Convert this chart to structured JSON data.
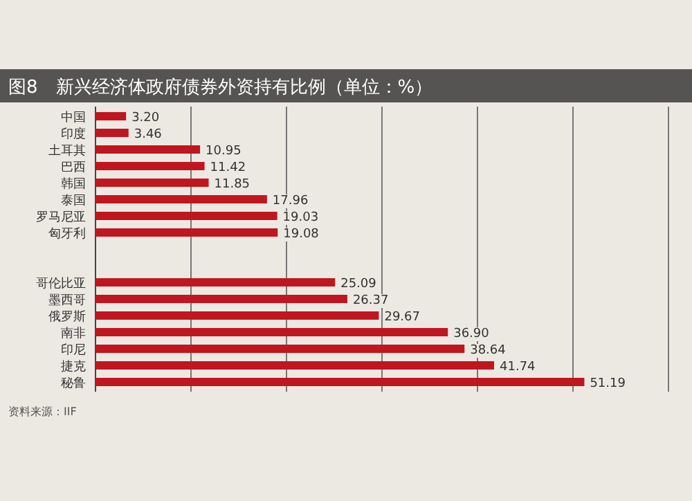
{
  "chart_data": {
    "type": "bar",
    "orientation": "horizontal",
    "title": "图8　新兴经济体政府债券外资持有比例（单位：%）",
    "categories": [
      "中国",
      "印度",
      "土耳其",
      "巴西",
      "韩国",
      "泰国",
      "罗马尼亚",
      "匈牙利",
      null,
      null,
      "哥伦比亚",
      "墨西哥",
      "俄罗斯",
      "南非",
      "印尼",
      "捷克",
      "秘鲁"
    ],
    "values": [
      3.2,
      3.46,
      10.95,
      11.42,
      11.85,
      17.96,
      19.03,
      19.08,
      null,
      null,
      25.09,
      26.37,
      29.67,
      36.9,
      38.64,
      41.74,
      51.19
    ],
    "value_labels": [
      "3.20",
      "3.46",
      "10.95",
      "11.42",
      "11.85",
      "17.96",
      "19.03",
      "19.08",
      null,
      null,
      "25.09",
      "26.37",
      "29.67",
      "36.90",
      "38.64",
      "41.74",
      "51.19"
    ],
    "color": "#c0161f",
    "xlim": [
      0,
      60
    ],
    "xticks": [
      {
        "value": 0,
        "label": null
      },
      {
        "value": 10,
        "label": null
      },
      {
        "value": 20,
        "label": null
      },
      {
        "value": 30,
        "label": null
      },
      {
        "value": 40,
        "label": null
      },
      {
        "value": 50,
        "label": null
      },
      {
        "value": 60,
        "label": null
      }
    ],
    "grid": "x",
    "tick_labels": "y",
    "annotations": [
      "资料来源：IIF"
    ]
  }
}
